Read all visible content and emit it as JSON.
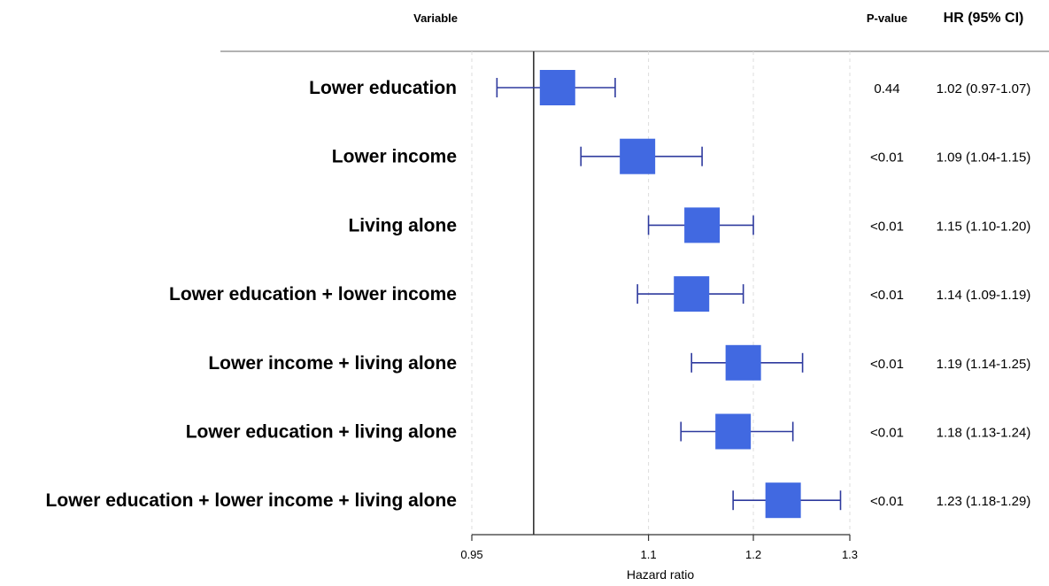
{
  "headers": {
    "variable": "Variable",
    "p_value": "P-value",
    "hr_ci": "HR (95% CI)"
  },
  "chart_data": {
    "type": "forest",
    "xlabel": "Hazard ratio",
    "x_scale": "log",
    "xlim": [
      0.95,
      1.3
    ],
    "xticks": [
      0.95,
      1.1,
      1.2,
      1.3
    ],
    "xtick_labels": [
      "0.95",
      "1.1",
      "1.2",
      "1.3"
    ],
    "reference_line": 1.0,
    "grid": "vertical dashed at ticks",
    "marker_color": "#4169e1",
    "whisker_color": "#2e3a9e",
    "rows": [
      {
        "variable": "Lower education",
        "hr": 1.02,
        "lower": 0.97,
        "upper": 1.07,
        "p_value": "0.44",
        "hr_ci": "1.02 (0.97-1.07)"
      },
      {
        "variable": "Lower income",
        "hr": 1.09,
        "lower": 1.04,
        "upper": 1.15,
        "p_value": "<0.01",
        "hr_ci": "1.09 (1.04-1.15)"
      },
      {
        "variable": "Living alone",
        "hr": 1.15,
        "lower": 1.1,
        "upper": 1.2,
        "p_value": "<0.01",
        "hr_ci": "1.15 (1.10-1.20)"
      },
      {
        "variable": "Lower education + lower income",
        "hr": 1.14,
        "lower": 1.09,
        "upper": 1.19,
        "p_value": "<0.01",
        "hr_ci": "1.14 (1.09-1.19)"
      },
      {
        "variable": "Lower income + living alone",
        "hr": 1.19,
        "lower": 1.14,
        "upper": 1.25,
        "p_value": "<0.01",
        "hr_ci": "1.19 (1.14-1.25)"
      },
      {
        "variable": "Lower education + living alone",
        "hr": 1.18,
        "lower": 1.13,
        "upper": 1.24,
        "p_value": "<0.01",
        "hr_ci": "1.18 (1.13-1.24)"
      },
      {
        "variable": "Lower education + lower income + living alone",
        "hr": 1.23,
        "lower": 1.18,
        "upper": 1.29,
        "p_value": "<0.01",
        "hr_ci": "1.23 (1.18-1.29)"
      }
    ]
  }
}
